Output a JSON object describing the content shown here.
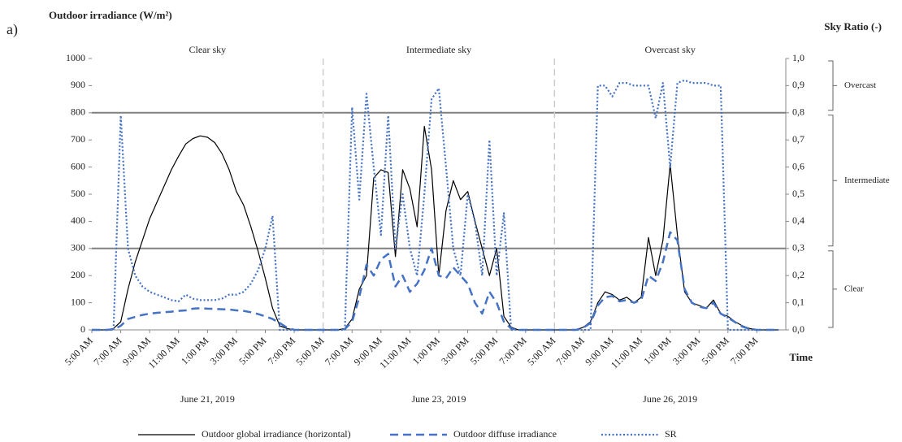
{
  "chart_data": {
    "type": "line",
    "panel_label": "a)",
    "y_label": "Outdoor irradiance (W/m²)",
    "y2_label": "Sky Ratio (-)",
    "x_label": "Time",
    "panels": [
      {
        "title": "Clear sky",
        "date": "June 21, 2019"
      },
      {
        "title": "Intermediate sky",
        "date": "June 23, 2019"
      },
      {
        "title": "Overcast sky",
        "date": "June 26, 2019"
      }
    ],
    "categories": [
      "5:00 AM",
      null,
      null,
      null,
      "7:00 AM",
      null,
      null,
      null,
      "9:00 AM",
      null,
      null,
      null,
      "11:00 AM",
      null,
      null,
      null,
      "1:00 PM",
      null,
      null,
      null,
      "3:00 PM",
      null,
      null,
      null,
      "5:00 PM",
      null,
      null,
      null,
      "7:00 PM",
      null,
      null,
      null,
      "5:00 AM",
      null,
      null,
      null,
      "7:00 AM",
      null,
      null,
      null,
      "9:00 AM",
      null,
      null,
      null,
      "11:00 AM",
      null,
      null,
      null,
      "1:00 PM",
      null,
      null,
      null,
      "3:00 PM",
      null,
      null,
      null,
      "5:00 PM",
      null,
      null,
      null,
      "7:00 PM",
      null,
      null,
      null,
      "5:00 AM",
      null,
      null,
      null,
      "7:00 AM",
      null,
      null,
      null,
      "9:00 AM",
      null,
      null,
      null,
      "11:00 AM",
      null,
      null,
      null,
      "1:00 PM",
      null,
      null,
      null,
      "3:00 PM",
      null,
      null,
      null,
      "5:00 PM",
      null,
      null,
      null,
      "7:00 PM",
      null,
      null,
      null
    ],
    "series": [
      {
        "name": "Outdoor global irradiance (horizontal)",
        "color": "#000000",
        "style": "solid",
        "values": [
          0,
          0,
          0,
          5,
          30,
          150,
          250,
          330,
          410,
          470,
          530,
          590,
          640,
          685,
          705,
          715,
          710,
          690,
          650,
          590,
          510,
          460,
          380,
          290,
          190,
          80,
          15,
          5,
          0,
          0,
          0,
          0,
          0,
          0,
          0,
          5,
          40,
          150,
          200,
          560,
          590,
          580,
          270,
          590,
          520,
          380,
          750,
          590,
          200,
          440,
          550,
          480,
          510,
          400,
          300,
          200,
          300,
          50,
          10,
          0,
          0,
          0,
          0,
          0,
          0,
          0,
          0,
          0,
          10,
          30,
          100,
          140,
          130,
          110,
          120,
          100,
          120,
          340,
          200,
          330,
          610,
          350,
          140,
          100,
          90,
          80,
          110,
          60,
          50,
          30,
          15,
          5,
          0,
          0,
          0,
          0
        ]
      },
      {
        "name": "Outdoor diffuse irradiance",
        "color": "#4472c4",
        "style": "dashed",
        "values": [
          0,
          0,
          0,
          2,
          15,
          40,
          48,
          55,
          60,
          63,
          65,
          67,
          70,
          72,
          78,
          80,
          78,
          77,
          76,
          75,
          72,
          70,
          65,
          58,
          50,
          40,
          25,
          8,
          0,
          0,
          0,
          0,
          0,
          0,
          0,
          3,
          30,
          120,
          240,
          200,
          260,
          280,
          160,
          200,
          140,
          170,
          220,
          300,
          200,
          190,
          230,
          200,
          170,
          100,
          60,
          140,
          100,
          30,
          5,
          0,
          0,
          0,
          0,
          0,
          0,
          0,
          0,
          0,
          8,
          25,
          90,
          120,
          125,
          105,
          110,
          100,
          110,
          200,
          180,
          250,
          360,
          330,
          150,
          100,
          85,
          80,
          100,
          60,
          45,
          28,
          12,
          4,
          0,
          0,
          0,
          0
        ]
      },
      {
        "name": "SR",
        "color": "#4472c4",
        "style": "dotted",
        "axis": "y2",
        "values": [
          0,
          0,
          0,
          0,
          0.79,
          0.3,
          0.2,
          0.16,
          0.14,
          0.13,
          0.12,
          0.11,
          0.105,
          0.13,
          0.115,
          0.11,
          0.11,
          0.11,
          0.115,
          0.13,
          0.13,
          0.14,
          0.17,
          0.22,
          0.3,
          0.42,
          0,
          0,
          0,
          0,
          0,
          0,
          0,
          0,
          0,
          0,
          0.82,
          0.48,
          0.87,
          0.6,
          0.35,
          0.79,
          0.3,
          0.5,
          0.3,
          0.2,
          0.5,
          0.85,
          0.89,
          0.6,
          0.3,
          0.2,
          0.5,
          0.4,
          0.2,
          0.7,
          0.2,
          0.43,
          0,
          0,
          0,
          0,
          0,
          0,
          0,
          0,
          0,
          0,
          0,
          0,
          0.9,
          0.9,
          0.86,
          0.91,
          0.91,
          0.9,
          0.9,
          0.9,
          0.78,
          0.91,
          0.6,
          0.91,
          0.92,
          0.91,
          0.91,
          0.91,
          0.9,
          0.9,
          0,
          0,
          0,
          0,
          0,
          0,
          0,
          0
        ]
      }
    ],
    "ylim": [
      0,
      1000
    ],
    "yticks": [
      0,
      100,
      200,
      300,
      400,
      500,
      600,
      700,
      800,
      900,
      1000
    ],
    "y2lim": [
      0,
      1
    ],
    "y2ticks": [
      {
        "value": 0,
        "label": "0,0"
      },
      {
        "value": 0.1,
        "label": "0,1"
      },
      {
        "value": 0.2,
        "label": "0,2"
      },
      {
        "value": 0.3,
        "label": "0,3"
      },
      {
        "value": 0.4,
        "label": "0,4"
      },
      {
        "value": 0.5,
        "label": "0,5"
      },
      {
        "value": 0.6,
        "label": "0,6"
      },
      {
        "value": 0.7,
        "label": "0,7"
      },
      {
        "value": 0.8,
        "label": "0,8"
      },
      {
        "value": 0.9,
        "label": "0,9"
      },
      {
        "value": 1,
        "label": "1,0"
      }
    ],
    "sky_bands": [
      {
        "label": "Clear",
        "range": [
          0,
          0.3
        ]
      },
      {
        "label": "Intermediate",
        "range": [
          0.3,
          0.8
        ]
      },
      {
        "label": "Overcast",
        "range": [
          0.8,
          1
        ]
      }
    ],
    "thresholds": [
      0.3,
      0.8
    ]
  }
}
